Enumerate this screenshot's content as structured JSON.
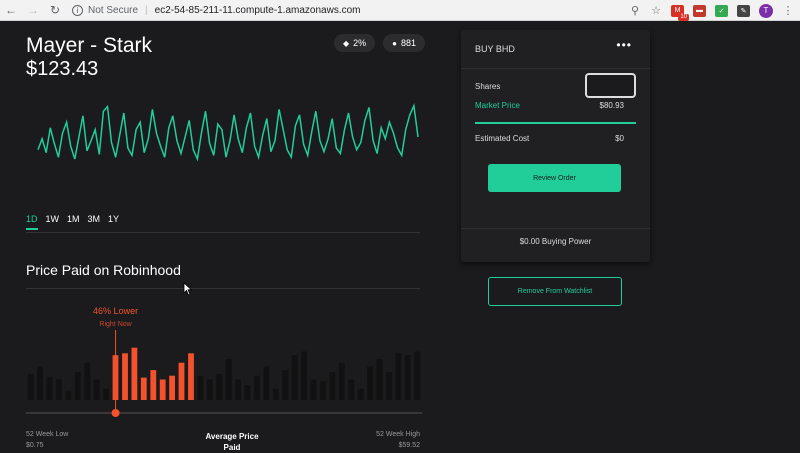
{
  "browser": {
    "security_label": "Not Secure",
    "url": "ec2-54-85-211-11.compute-1.amazonaws.com",
    "mail_badge": "10",
    "profile_initial": "T"
  },
  "stock": {
    "name": "Mayer - Stark",
    "price": "$123.43",
    "change_pill": "2%",
    "holders_pill": "881"
  },
  "ranges": [
    "1D",
    "1W",
    "1M",
    "3M",
    "1Y"
  ],
  "price_paid": {
    "title": "Price Paid on Robinhood",
    "highlight_label": "46% Lower",
    "highlight_sub": "Right Now",
    "low_label": "52 Week Low",
    "low_value": "$0.75",
    "avg_label": "Average Price Paid",
    "high_label": "52 Week High",
    "high_value": "$59.52"
  },
  "buy_card": {
    "title": "BUY BHD",
    "menu": "•••",
    "shares_label": "Shares",
    "shares_value": "",
    "market_price_label": "Market Price",
    "market_price_value": "$80.93",
    "estimated_cost_label": "Estimated Cost",
    "estimated_cost_value": "$0",
    "review_button": "Review Order",
    "buying_power": "$0.00 Buying Power"
  },
  "watchlist_button": "Remove From Watchlist",
  "colors": {
    "accent": "#21ce99",
    "highlight": "#f4522d",
    "background": "#1b1b1d"
  },
  "chart_data": [
    {
      "type": "line",
      "series": [
        {
          "values": [
            48,
            60,
            45,
            72,
            55,
            40,
            66,
            78,
            52,
            38,
            62,
            85,
            47,
            58,
            70,
            43,
            90,
            95,
            56,
            40,
            64,
            88,
            50,
            42,
            70,
            78,
            45,
            60,
            92,
            66,
            52,
            40,
            72,
            85,
            58,
            44,
            62,
            80,
            48,
            38,
            66,
            90,
            55,
            42,
            76,
            70,
            40,
            58,
            86,
            60,
            45,
            72,
            88,
            52,
            40,
            64,
            82,
            46,
            58,
            92,
            70,
            48,
            40,
            74,
            86,
            54,
            42,
            68,
            90,
            58,
            46,
            60,
            82,
            50,
            44,
            70,
            88,
            62,
            48,
            56,
            80,
            94,
            58,
            44,
            72,
            60,
            78,
            66,
            50,
            42,
            70,
            86,
            96,
            62
          ]
        }
      ],
      "ylim": [
        0,
        100
      ]
    },
    {
      "type": "bar",
      "values": [
        28,
        36,
        25,
        22,
        10,
        30,
        40,
        22,
        12,
        48,
        50,
        56,
        24,
        32,
        22,
        26,
        40,
        50,
        26,
        22,
        28,
        44,
        22,
        16,
        26,
        36,
        12,
        32,
        48,
        52,
        22,
        20,
        30,
        40,
        22,
        12,
        36,
        44,
        30,
        50,
        48,
        52
      ],
      "highlight_range": [
        9,
        17
      ],
      "marker_index": 9,
      "ylim": [
        0,
        60
      ]
    }
  ]
}
